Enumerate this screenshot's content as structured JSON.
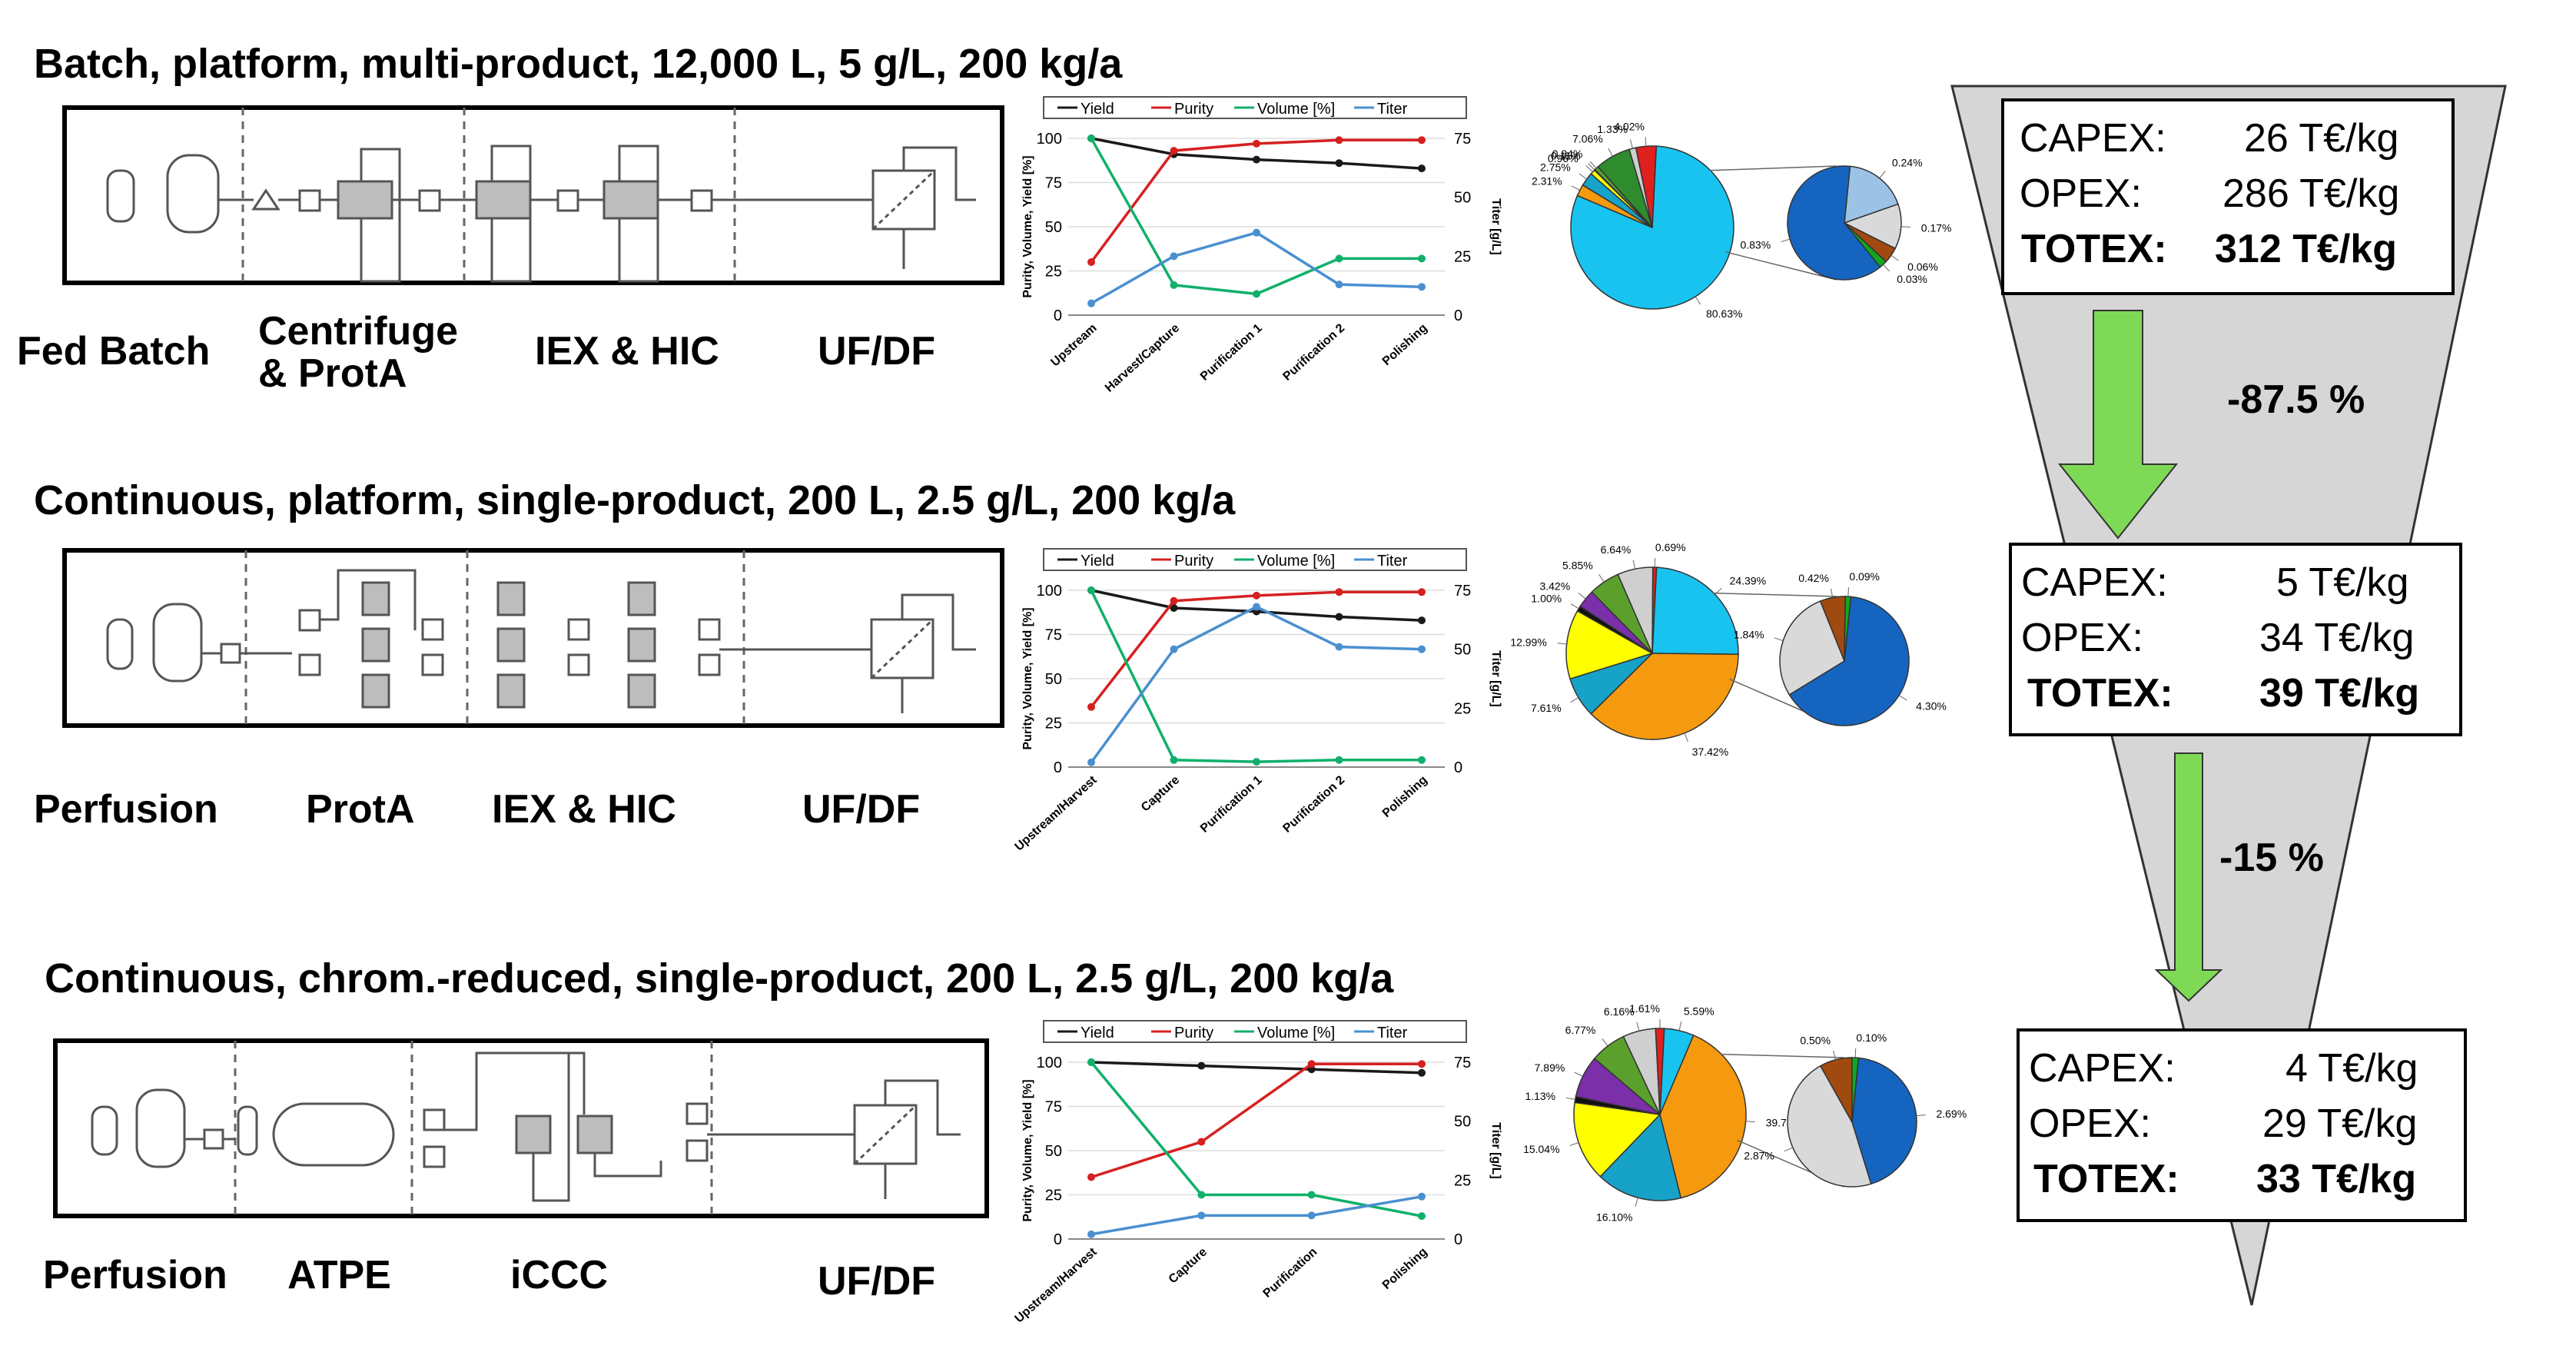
{
  "scenarios": [
    {
      "title": "Batch, platform, multi-product, 12,000 L, 5 g/L, 200 kg/a",
      "stages": [
        "Fed Batch",
        "Centrifuge\n& ProtA",
        "IEX & HIC",
        "UF/DF"
      ],
      "costs": {
        "capex_label": "CAPEX:",
        "capex_value": "26 T€/kg",
        "opex_label": "OPEX:",
        "opex_value": "286 T€/kg",
        "totex_label": "TOTEX:",
        "totex_value": "312 T€/kg"
      }
    },
    {
      "title": "Continuous, platform, single-product, 200 L, 2.5 g/L, 200 kg/a",
      "stages": [
        "Perfusion",
        "ProtA",
        "IEX & HIC",
        "UF/DF"
      ],
      "costs": {
        "capex_label": "CAPEX:",
        "capex_value": "5 T€/kg",
        "opex_label": "OPEX:",
        "opex_value": "34 T€/kg",
        "totex_label": "TOTEX:",
        "totex_value": "39 T€/kg"
      }
    },
    {
      "title": "Continuous, chrom.-reduced, single-product, 200 L, 2.5 g/L, 200 kg/a",
      "stages": [
        "Perfusion",
        "ATPE",
        "iCCC",
        "UF/DF"
      ],
      "costs": {
        "capex_label": "CAPEX:",
        "capex_value": "4 T€/kg",
        "opex_label": "OPEX:",
        "opex_value": "29 T€/kg",
        "totex_label": "TOTEX:",
        "totex_value": "33 T€/kg"
      }
    }
  ],
  "reductions": [
    "-87.5 %",
    "-15 %"
  ],
  "colors": {
    "yield": "#1a1a1a",
    "purity": "#d62020",
    "volume": "#11b06a",
    "titer": "#4a8fd0",
    "funnel": "#d6d6d6",
    "arrow": "#7ed957"
  },
  "chart_data": [
    {
      "type": "line",
      "legend": [
        "Yield",
        "Purity",
        "Volume [%]",
        "Titer"
      ],
      "categories": [
        "Upstream",
        "Harvest/Capture",
        "Purification 1",
        "Purification 2",
        "Polishing"
      ],
      "ylabel": "Purity, Volume, Yield [%]",
      "y2label": "Titer [g/L]",
      "ylim": [
        0,
        100
      ],
      "y2lim": [
        0,
        75
      ],
      "yticks": [
        "0",
        "25",
        "50",
        "75",
        "100"
      ],
      "y2ticks": [
        "0",
        "25",
        "50",
        "75"
      ],
      "series": [
        {
          "name": "Yield",
          "axis": "left",
          "values": [
            100,
            91,
            88,
            86,
            83
          ]
        },
        {
          "name": "Purity",
          "axis": "left",
          "values": [
            30,
            93,
            97,
            99,
            99
          ]
        },
        {
          "name": "Volume [%]",
          "axis": "left",
          "values": [
            100,
            17,
            12,
            32,
            32
          ]
        },
        {
          "name": "Titer",
          "axis": "right",
          "values": [
            5,
            25,
            35,
            13,
            12
          ]
        }
      ]
    },
    {
      "type": "line",
      "legend": [
        "Yield",
        "Purity",
        "Volume [%]",
        "Titer"
      ],
      "categories": [
        "Upstream/Harvest",
        "Capture",
        "Purification 1",
        "Purification 2",
        "Polishing"
      ],
      "ylabel": "Purity, Volume, Yield [%]",
      "y2label": "Titer [g/L]",
      "ylim": [
        0,
        100
      ],
      "y2lim": [
        0,
        75
      ],
      "yticks": [
        "0",
        "25",
        "50",
        "75",
        "100"
      ],
      "y2ticks": [
        "0",
        "25",
        "50",
        "75"
      ],
      "series": [
        {
          "name": "Yield",
          "axis": "left",
          "values": [
            100,
            90,
            88,
            85,
            83
          ]
        },
        {
          "name": "Purity",
          "axis": "left",
          "values": [
            34,
            94,
            97,
            99,
            99
          ]
        },
        {
          "name": "Volume [%]",
          "axis": "left",
          "values": [
            100,
            4,
            3,
            4,
            4
          ]
        },
        {
          "name": "Titer",
          "axis": "right",
          "values": [
            2,
            50,
            68,
            51,
            50
          ]
        }
      ]
    },
    {
      "type": "line",
      "legend": [
        "Yield",
        "Purity",
        "Volume [%]",
        "Titer"
      ],
      "categories": [
        "Upstream/Harvest",
        "Capture",
        "Purification",
        "Polishing"
      ],
      "ylabel": "Purity, Volume, Yield [%]",
      "y2label": "Titer [g/L]",
      "ylim": [
        0,
        100
      ],
      "y2lim": [
        0,
        75
      ],
      "yticks": [
        "0",
        "25",
        "50",
        "75",
        "100"
      ],
      "y2ticks": [
        "0",
        "25",
        "50",
        "75"
      ],
      "series": [
        {
          "name": "Yield",
          "axis": "left",
          "values": [
            100,
            98,
            96,
            94
          ]
        },
        {
          "name": "Purity",
          "axis": "left",
          "values": [
            35,
            55,
            99,
            99
          ]
        },
        {
          "name": "Volume [%]",
          "axis": "left",
          "values": [
            100,
            25,
            25,
            13
          ]
        },
        {
          "name": "Titer",
          "axis": "right",
          "values": [
            2,
            10,
            10,
            18
          ]
        }
      ]
    },
    {
      "type": "pie",
      "main": [
        {
          "label": "80.63%",
          "value": 80.63,
          "color": "#19c3f0"
        },
        {
          "label": "2.31%",
          "value": 2.31,
          "color": "#f59a0f"
        },
        {
          "label": "2.75%",
          "value": 2.75,
          "color": "#17a2c7"
        },
        {
          "label": "0.96%",
          "value": 0.96,
          "color": "#ffff00"
        },
        {
          "label": "0.11%",
          "value": 0.11,
          "color": "#7b2fa8"
        },
        {
          "label": "0.84%",
          "value": 0.84,
          "color": "#5ba02d"
        },
        {
          "label": "7.06%",
          "value": 7.06,
          "color": "#2e8b2e"
        },
        {
          "label": "1.33%",
          "value": 1.33,
          "color": "#cfcfcf"
        },
        {
          "label": "4.02%",
          "value": 4.02,
          "color": "#e01f1f"
        }
      ],
      "detail": [
        {
          "label": "0.24%",
          "value": 0.24,
          "color": "#9cc3e6"
        },
        {
          "label": "0.17%",
          "value": 0.17,
          "color": "#d9d9d9"
        },
        {
          "label": "0.06%",
          "value": 0.06,
          "color": "#a04a10"
        },
        {
          "label": "0.03%",
          "value": 0.03,
          "color": "#11a820"
        },
        {
          "label": "0.83%",
          "value": 0.83,
          "color": "#1565c0"
        }
      ]
    },
    {
      "type": "pie",
      "main": [
        {
          "label": "24.39%",
          "value": 24.39,
          "color": "#19c3f0"
        },
        {
          "label": "37.42%",
          "value": 37.42,
          "color": "#f59a0f"
        },
        {
          "label": "7.61%",
          "value": 7.61,
          "color": "#17a2c7"
        },
        {
          "label": "12.99%",
          "value": 12.99,
          "color": "#ffff00"
        },
        {
          "label": "1.00%",
          "value": 1.0,
          "color": "#111111"
        },
        {
          "label": "3.42%",
          "value": 3.42,
          "color": "#7b2fa8"
        },
        {
          "label": "5.85%",
          "value": 5.85,
          "color": "#5ba02d"
        },
        {
          "label": "6.64%",
          "value": 6.64,
          "color": "#cfcfcf"
        },
        {
          "label": "0.69%",
          "value": 0.69,
          "color": "#e01f1f"
        }
      ],
      "detail": [
        {
          "label": "4.30%",
          "value": 4.3,
          "color": "#1565c0"
        },
        {
          "label": "1.84%",
          "value": 1.84,
          "color": "#d9d9d9"
        },
        {
          "label": "0.42%",
          "value": 0.42,
          "color": "#a04a10"
        },
        {
          "label": "0.09%",
          "value": 0.09,
          "color": "#11a820"
        }
      ]
    },
    {
      "type": "pie",
      "main": [
        {
          "label": "5.59%",
          "value": 5.59,
          "color": "#19c3f0"
        },
        {
          "label": "39.70%",
          "value": 39.7,
          "color": "#f59a0f"
        },
        {
          "label": "16.10%",
          "value": 16.1,
          "color": "#17a2c7"
        },
        {
          "label": "15.04%",
          "value": 15.04,
          "color": "#ffff00"
        },
        {
          "label": "1.13%",
          "value": 1.13,
          "color": "#111111"
        },
        {
          "label": "7.89%",
          "value": 7.89,
          "color": "#7b2fa8"
        },
        {
          "label": "6.77%",
          "value": 6.77,
          "color": "#5ba02d"
        },
        {
          "label": "6.16%",
          "value": 6.16,
          "color": "#cfcfcf"
        },
        {
          "label": "1.61%",
          "value": 1.61,
          "color": "#e01f1f"
        }
      ],
      "detail": [
        {
          "label": "2.69%",
          "value": 2.69,
          "color": "#1565c0"
        },
        {
          "label": "2.87%",
          "value": 2.87,
          "color": "#d9d9d9"
        },
        {
          "label": "0.50%",
          "value": 0.5,
          "color": "#a04a10"
        },
        {
          "label": "0.10%",
          "value": 0.1,
          "color": "#11a820"
        }
      ]
    }
  ]
}
